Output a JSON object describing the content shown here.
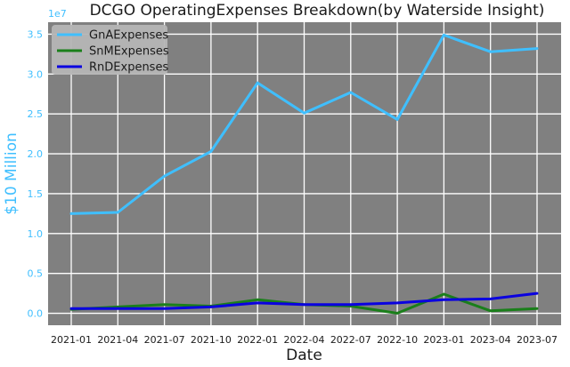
{
  "chart_data": {
    "type": "line",
    "title": "DCGO OperatingExpenses Breakdown(by Waterside Insight)",
    "xlabel": "Date",
    "ylabel": "$10 Million",
    "y_offset_label": "1e7",
    "x": [
      "2021-01",
      "2021-04",
      "2021-07",
      "2021-10",
      "2022-01",
      "2022-04",
      "2022-07",
      "2022-10",
      "2023-01",
      "2023-04",
      "2023-07"
    ],
    "xticks": [
      "2021-01",
      "2021-04",
      "2021-07",
      "2021-10",
      "2022-01",
      "2022-04",
      "2022-07",
      "2022-10",
      "2023-01",
      "2023-04",
      "2023-07"
    ],
    "yticks": [
      "0.0",
      "0.5",
      "1.0",
      "1.5",
      "2.0",
      "2.5",
      "3.0",
      "3.5"
    ],
    "ylim": [
      -1500000,
      36500000
    ],
    "grid": true,
    "legend_position": "top-left",
    "background": "#808080",
    "series": [
      {
        "name": "GnAExpenses",
        "color": "#3fbfff",
        "values": [
          12500000,
          12650000,
          17200000,
          20300000,
          28900000,
          25100000,
          27700000,
          24300000,
          34900000,
          32800000,
          33200000
        ]
      },
      {
        "name": "SnMExpenses",
        "color": "#1a7f1a",
        "values": [
          500000,
          800000,
          1100000,
          900000,
          1700000,
          1100000,
          900000,
          0,
          2400000,
          300000,
          600000
        ]
      },
      {
        "name": "RnDExpenses",
        "color": "#0a00e0",
        "values": [
          600000,
          600000,
          600000,
          800000,
          1300000,
          1100000,
          1100000,
          1300000,
          1700000,
          1800000,
          2500000
        ]
      }
    ]
  }
}
